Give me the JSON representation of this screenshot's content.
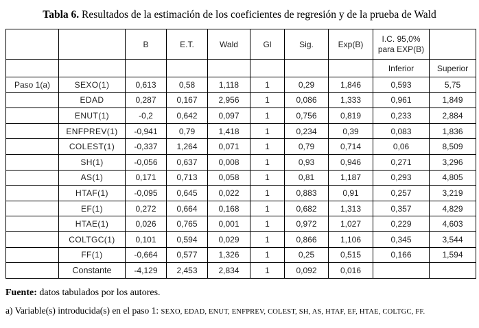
{
  "title": {
    "label": "Tabla 6.",
    "text": " Resultados de la estimación de los coeficientes de regresión y de la prueba de Wald"
  },
  "table": {
    "headers": {
      "b": "B",
      "et": "E.T.",
      "wald": "Wald",
      "gl": "Gl",
      "sig": "Sig.",
      "expb": "Exp(B)",
      "ic_line1": "I.C. 95,0%",
      "ic_line2": "para EXP(B)",
      "inferior": "Inferior",
      "superior": "Superior"
    },
    "step_label": "Paso 1(a)",
    "rows": [
      {
        "variable": "SEXO(1)",
        "b": "0,613",
        "et": "0,58",
        "wald": "1,118",
        "gl": "1",
        "sig": "0,29",
        "expb": "1,846",
        "inferior": "0,593",
        "superior": "5,75"
      },
      {
        "variable": "EDAD",
        "b": "0,287",
        "et": "0,167",
        "wald": "2,956",
        "gl": "1",
        "sig": "0,086",
        "expb": "1,333",
        "inferior": "0,961",
        "superior": "1,849"
      },
      {
        "variable": "ENUT(1)",
        "b": "-0,2",
        "et": "0,642",
        "wald": "0,097",
        "gl": "1",
        "sig": "0,756",
        "expb": "0,819",
        "inferior": "0,233",
        "superior": "2,884"
      },
      {
        "variable": "ENFPREV(1)",
        "b": "-0,941",
        "et": "0,79",
        "wald": "1,418",
        "gl": "1",
        "sig": "0,234",
        "expb": "0,39",
        "inferior": "0,083",
        "superior": "1,836"
      },
      {
        "variable": "COLEST(1)",
        "b": "-0,337",
        "et": "1,264",
        "wald": "0,071",
        "gl": "1",
        "sig": "0,79",
        "expb": "0,714",
        "inferior": "0,06",
        "superior": "8,509"
      },
      {
        "variable": "SH(1)",
        "b": "-0,056",
        "et": "0,637",
        "wald": "0,008",
        "gl": "1",
        "sig": "0,93",
        "expb": "0,946",
        "inferior": "0,271",
        "superior": "3,296"
      },
      {
        "variable": "AS(1)",
        "b": "0,171",
        "et": "0,713",
        "wald": "0,058",
        "gl": "1",
        "sig": "0,81",
        "expb": "1,187",
        "inferior": "0,293",
        "superior": "4,805"
      },
      {
        "variable": "HTAF(1)",
        "b": "-0,095",
        "et": "0,645",
        "wald": "0,022",
        "gl": "1",
        "sig": "0,883",
        "expb": "0,91",
        "inferior": "0,257",
        "superior": "3,219"
      },
      {
        "variable": "EF(1)",
        "b": "0,272",
        "et": "0,664",
        "wald": "0,168",
        "gl": "1",
        "sig": "0,682",
        "expb": "1,313",
        "inferior": "0,357",
        "superior": "4,829"
      },
      {
        "variable": "HTAE(1)",
        "b": "0,026",
        "et": "0,765",
        "wald": "0,001",
        "gl": "1",
        "sig": "0,972",
        "expb": "1,027",
        "inferior": "0,229",
        "superior": "4,603"
      },
      {
        "variable": "COLTGC(1)",
        "b": "0,101",
        "et": "0,594",
        "wald": "0,029",
        "gl": "1",
        "sig": "0,866",
        "expb": "1,106",
        "inferior": "0,345",
        "superior": "3,544"
      },
      {
        "variable": "FF(1)",
        "b": "-0,664",
        "et": "0,577",
        "wald": "1,326",
        "gl": "1",
        "sig": "0,25",
        "expb": "0,515",
        "inferior": "0,166",
        "superior": "1,594"
      },
      {
        "variable": "Constante",
        "b": "-4,129",
        "et": "2,453",
        "wald": "2,834",
        "gl": "1",
        "sig": "0,092",
        "expb": "0,016",
        "inferior": "",
        "superior": ""
      }
    ]
  },
  "footer": {
    "source_label": "Fuente:",
    "source_text": " datos tabulados por los autores.",
    "note_prefix": "a) Variable(s) introducida(s) en el paso 1: ",
    "note_vars": "SEXO, EDAD, ENUT, ENFPREV, COLEST, SH, AS, HTAF, EF, HTAE, COLTGC, FF."
  }
}
